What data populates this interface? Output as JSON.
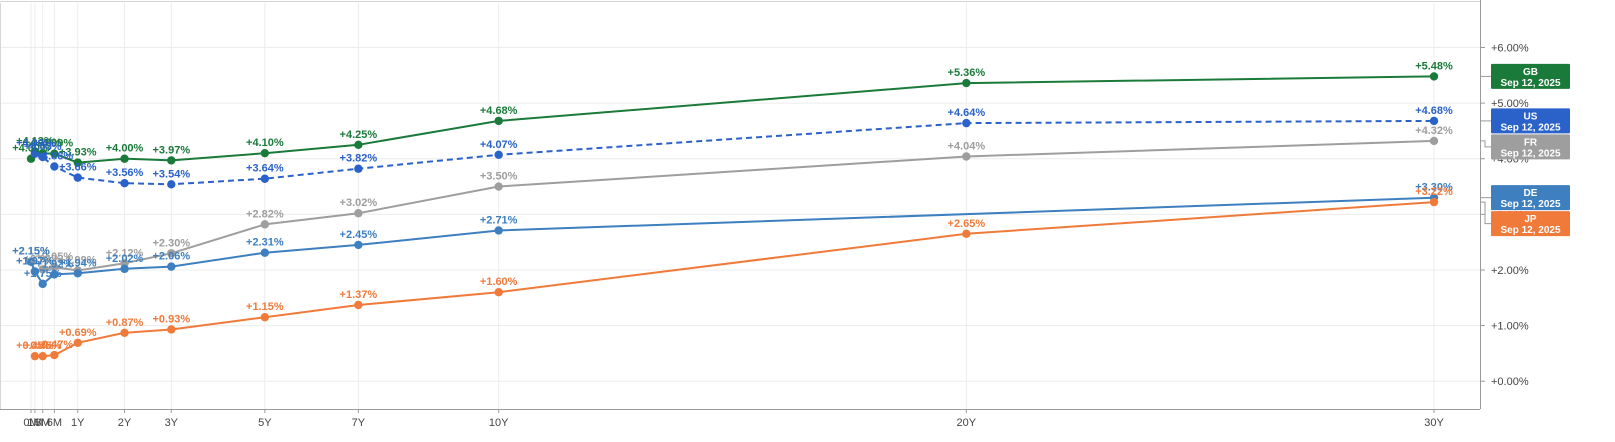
{
  "chart_data": {
    "type": "line",
    "title": "",
    "xlabel": "",
    "ylabel": "",
    "x": [
      "0M",
      "1M",
      "3M",
      "6M",
      "1Y",
      "2Y",
      "3Y",
      "5Y",
      "7Y",
      "10Y",
      "20Y",
      "30Y"
    ],
    "x_months": [
      0,
      1,
      3,
      6,
      12,
      24,
      36,
      60,
      84,
      120,
      240,
      360
    ],
    "ylim": [
      -0.5,
      6.8
    ],
    "y_ticks": [
      0,
      1,
      2,
      3,
      4,
      5,
      6
    ],
    "y_tick_labels": [
      "+0.00%",
      "+1.00%",
      "+2.00%",
      "+3.00%",
      "+4.00%",
      "+5.00%",
      "+6.00%"
    ],
    "grid": true,
    "legend": "right-axis tags",
    "series": [
      {
        "name": "GB",
        "tag_date": "Sep 12, 2025",
        "color": "#1a7a3a",
        "dashed": false,
        "points": [
          [
            0,
            4.0
          ],
          [
            1,
            4.13
          ],
          [
            3,
            4.1
          ],
          [
            6,
            4.09
          ],
          [
            12,
            3.93
          ],
          [
            24,
            4.0
          ],
          [
            36,
            3.97
          ],
          [
            60,
            4.1
          ],
          [
            84,
            4.25
          ],
          [
            120,
            4.68
          ],
          [
            240,
            5.36
          ],
          [
            360,
            5.48
          ]
        ],
        "labels": [
          "+4.00%",
          "+4.13%",
          "+4.10%",
          "+4.09%",
          "+3.93%",
          "+4.00%",
          "+3.97%",
          "+4.10%",
          "+4.25%",
          "+4.68%",
          "+5.36%",
          "+5.48%"
        ]
      },
      {
        "name": "US",
        "tag_date": "Sep 12, 2025",
        "color": "#2a62c9",
        "dashed": true,
        "points": [
          [
            1,
            4.09
          ],
          [
            3,
            4.03
          ],
          [
            6,
            3.86
          ],
          [
            12,
            3.66
          ],
          [
            24,
            3.56
          ],
          [
            36,
            3.54
          ],
          [
            60,
            3.64
          ],
          [
            84,
            3.82
          ],
          [
            120,
            4.07
          ],
          [
            240,
            4.64
          ],
          [
            360,
            4.68
          ]
        ],
        "labels": [
          "+4.09%",
          "+4.03%",
          "+3.86%",
          "+3.66%",
          "+3.56%",
          "+3.54%",
          "+3.64%",
          "+3.82%",
          "+4.07%",
          "+4.64%",
          "+4.68%"
        ]
      },
      {
        "name": "FR",
        "tag_date": "Sep 12, 2025",
        "color": "#9e9e9e",
        "dashed": false,
        "points": [
          [
            0,
            2.15
          ],
          [
            1,
            1.97
          ],
          [
            3,
            2.01
          ],
          [
            6,
            2.05
          ],
          [
            12,
            1.99
          ],
          [
            24,
            2.12
          ],
          [
            36,
            2.3
          ],
          [
            60,
            2.82
          ],
          [
            84,
            3.02
          ],
          [
            120,
            3.5
          ],
          [
            240,
            4.04
          ],
          [
            360,
            4.32
          ]
        ],
        "labels": [
          "+2.15%",
          "+1.97%",
          "+2.01%",
          "+2.05%",
          "+1.99%",
          "+2.12%",
          "+2.30%",
          "+2.82%",
          "+3.02%",
          "+3.50%",
          "+4.04%",
          "+4.32%"
        ]
      },
      {
        "name": "DE",
        "tag_date": "Sep 12, 2025",
        "color": "#3d7fbf",
        "dashed": false,
        "points": [
          [
            0,
            2.15
          ],
          [
            1,
            1.97
          ],
          [
            3,
            1.75
          ],
          [
            6,
            1.92
          ],
          [
            12,
            1.94
          ],
          [
            24,
            2.02
          ],
          [
            36,
            2.06
          ],
          [
            60,
            2.31
          ],
          [
            84,
            2.45
          ],
          [
            120,
            2.71
          ],
          [
            360,
            3.3
          ]
        ],
        "labels": [
          "+2.15%",
          "+1.97%",
          "+1.75%",
          "+1.92%",
          "+1.94%",
          "+2.02%",
          "+2.06%",
          "+2.31%",
          "+2.45%",
          "+2.71%",
          "+3.30%"
        ]
      },
      {
        "name": "JP",
        "tag_date": "Sep 12, 2025",
        "color": "#f07a3a",
        "dashed": false,
        "points": [
          [
            1,
            0.45
          ],
          [
            3,
            0.45
          ],
          [
            6,
            0.47
          ],
          [
            12,
            0.69
          ],
          [
            24,
            0.87
          ],
          [
            36,
            0.93
          ],
          [
            60,
            1.15
          ],
          [
            84,
            1.37
          ],
          [
            120,
            1.6
          ],
          [
            240,
            2.65
          ],
          [
            360,
            3.22
          ]
        ],
        "labels": [
          "+0.45%",
          "+0.45%",
          "+0.47%",
          "+0.69%",
          "+0.87%",
          "+0.93%",
          "+1.15%",
          "+1.37%",
          "+1.60%",
          "+2.65%",
          "+3.22%"
        ]
      }
    ]
  }
}
